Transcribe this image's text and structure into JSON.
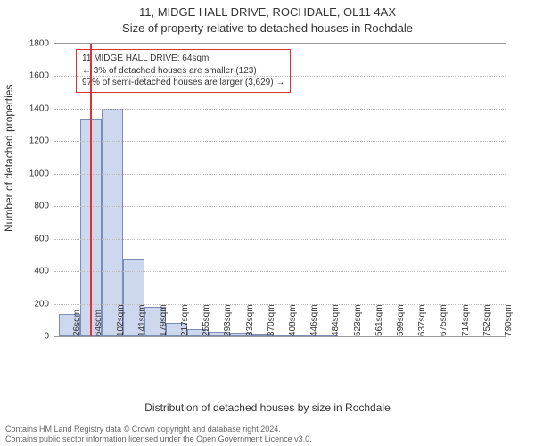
{
  "title_line1": "11, MIDGE HALL DRIVE, ROCHDALE, OL11 4AX",
  "title_line2": "Size of property relative to detached houses in Rochdale",
  "ylabel": "Number of detached properties",
  "xlabel": "Distribution of detached houses by size in Rochdale",
  "footer_line1": "Contains HM Land Registry data © Crown copyright and database right 2024.",
  "footer_line2": "Contains public sector information licensed under the Open Government Licence v3.0.",
  "legend": {
    "line1": "11 MIDGE HALL DRIVE: 64sqm",
    "line2": "← 3% of detached houses are smaller (123)",
    "line3": "97% of semi-detached houses are larger (3,629) →",
    "border_color": "#d33"
  },
  "chart": {
    "type": "histogram",
    "ylim": [
      0,
      1800
    ],
    "ytick_step": 200,
    "yticks": [
      0,
      200,
      400,
      600,
      800,
      1000,
      1200,
      1400,
      1600,
      1800
    ],
    "x_min": 0,
    "x_max": 800,
    "x_tick_labels": [
      "26sqm",
      "64sqm",
      "102sqm",
      "141sqm",
      "179sqm",
      "217sqm",
      "255sqm",
      "293sqm",
      "332sqm",
      "370sqm",
      "408sqm",
      "446sqm",
      "484sqm",
      "523sqm",
      "561sqm",
      "599sqm",
      "637sqm",
      "675sqm",
      "714sqm",
      "752sqm",
      "790sqm"
    ],
    "x_tick_positions": [
      26,
      64,
      102,
      141,
      179,
      217,
      255,
      293,
      332,
      370,
      408,
      446,
      484,
      523,
      561,
      599,
      637,
      675,
      714,
      752,
      790
    ],
    "bar_bin_width": 38,
    "bar_fill": "#cdd8ef",
    "bar_stroke": "#7c8db6",
    "background_color": "#ffffff",
    "grid_color": "#bbbbbb",
    "axis_color": "#999999",
    "bars": [
      {
        "x_start": 8,
        "count": 140
      },
      {
        "x_start": 46,
        "count": 1340
      },
      {
        "x_start": 84,
        "count": 1400
      },
      {
        "x_start": 122,
        "count": 480
      },
      {
        "x_start": 160,
        "count": 180
      },
      {
        "x_start": 198,
        "count": 80
      },
      {
        "x_start": 236,
        "count": 45
      },
      {
        "x_start": 274,
        "count": 30
      },
      {
        "x_start": 312,
        "count": 20
      },
      {
        "x_start": 350,
        "count": 15
      },
      {
        "x_start": 388,
        "count": 12
      },
      {
        "x_start": 426,
        "count": 10
      },
      {
        "x_start": 464,
        "count": 8
      }
    ],
    "marker_x": 64,
    "marker_color": "#d33"
  }
}
